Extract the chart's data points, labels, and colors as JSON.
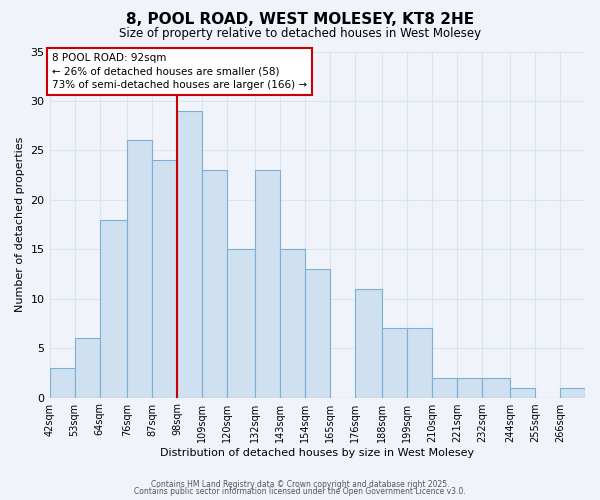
{
  "title": "8, POOL ROAD, WEST MOLESEY, KT8 2HE",
  "subtitle": "Size of property relative to detached houses in West Molesey",
  "xlabel": "Distribution of detached houses by size in West Molesey",
  "ylabel": "Number of detached properties",
  "bin_labels": [
    "42sqm",
    "53sqm",
    "64sqm",
    "76sqm",
    "87sqm",
    "98sqm",
    "109sqm",
    "120sqm",
    "132sqm",
    "143sqm",
    "154sqm",
    "165sqm",
    "176sqm",
    "188sqm",
    "199sqm",
    "210sqm",
    "221sqm",
    "232sqm",
    "244sqm",
    "255sqm",
    "266sqm"
  ],
  "bar_values": [
    3,
    6,
    18,
    26,
    24,
    29,
    23,
    15,
    23,
    15,
    13,
    0,
    11,
    7,
    7,
    2,
    2,
    2,
    1,
    0,
    1
  ],
  "bar_color": "#cfe0f0",
  "bar_edgecolor": "#7bafd4",
  "vline_color": "#cc0000",
  "annotation_title": "8 POOL ROAD: 92sqm",
  "annotation_line1": "← 26% of detached houses are smaller (58)",
  "annotation_line2": "73% of semi-detached houses are larger (166) →",
  "annotation_box_edgecolor": "#cc0000",
  "ylim": [
    0,
    35
  ],
  "yticks": [
    0,
    5,
    10,
    15,
    20,
    25,
    30,
    35
  ],
  "footer1": "Contains HM Land Registry data © Crown copyright and database right 2025.",
  "footer2": "Contains public sector information licensed under the Open Government Licence v3.0.",
  "bg_color": "#f0f4fa",
  "grid_color": "#d8e4f0",
  "bin_edges": [
    42,
    53,
    64,
    76,
    87,
    98,
    109,
    120,
    132,
    143,
    154,
    165,
    176,
    188,
    199,
    210,
    221,
    232,
    244,
    255,
    266,
    277
  ],
  "vline_x_bin": 4,
  "property_sqm": 92
}
